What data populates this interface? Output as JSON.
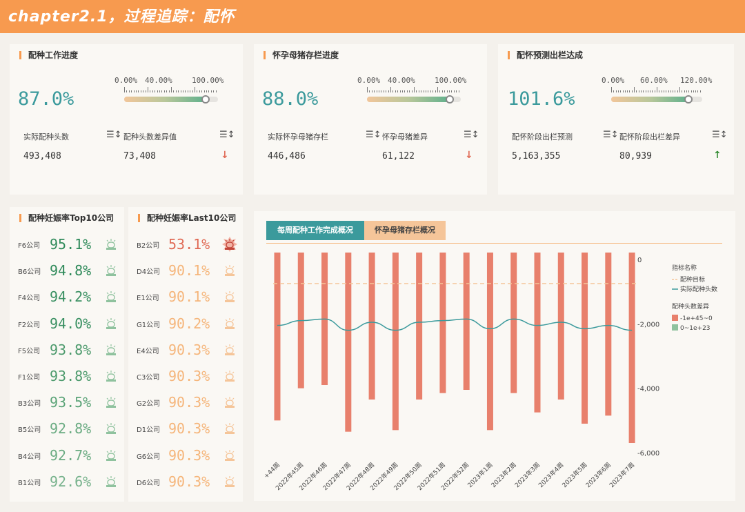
{
  "header": {
    "title": "chapter2.1，过程追踪：配怀"
  },
  "kpis": [
    {
      "title": "配种工作进度",
      "value": "87.0%",
      "ticks": [
        "0.00%",
        "40.00%",
        "100.00%"
      ],
      "progress": 0.87,
      "metric1_label": "实际配种头数",
      "metric1_value": "493,408",
      "metric2_label": "配种头数差异值",
      "metric2_value": "73,408",
      "trend": "down"
    },
    {
      "title": "怀孕母猪存栏进度",
      "value": "88.0%",
      "ticks": [
        "0.00%",
        "40.00%",
        "100.00%"
      ],
      "progress": 0.88,
      "metric1_label": "实际怀孕母猪存栏",
      "metric1_value": "446,486",
      "metric2_label": "怀孕母猪差异",
      "metric2_value": "61,122",
      "trend": "down"
    },
    {
      "title": "配怀预测出栏达成",
      "value": "101.6%",
      "ticks": [
        "0.00%",
        "60.00%",
        "120.00%"
      ],
      "progress": 0.847,
      "metric1_label": "配怀阶段出栏预测",
      "metric1_value": "5,163,355",
      "metric2_label": "配怀阶段出栏差异",
      "metric2_value": "80,939",
      "trend": "up"
    }
  ],
  "trend_icons": {
    "down": "↓",
    "up": "↑"
  },
  "colors": {
    "accent": "#f79a4f",
    "teal": "#3b9a9c",
    "green": "#2f8a5a",
    "red": "#e06a55",
    "orange_light": "#f5b57a",
    "bar": "#e8806c"
  },
  "top10": {
    "title": "配种妊娠率Top10公司",
    "items": [
      {
        "name": "F6公司",
        "value": "95.1%"
      },
      {
        "name": "B6公司",
        "value": "94.8%"
      },
      {
        "name": "F4公司",
        "value": "94.2%"
      },
      {
        "name": "F2公司",
        "value": "94.0%"
      },
      {
        "name": "F5公司",
        "value": "93.8%"
      },
      {
        "name": "F1公司",
        "value": "93.8%"
      },
      {
        "name": "B3公司",
        "value": "93.5%"
      },
      {
        "name": "B5公司",
        "value": "92.8%"
      },
      {
        "name": "B4公司",
        "value": "92.7%"
      },
      {
        "name": "B1公司",
        "value": "92.6%"
      }
    ]
  },
  "last10": {
    "title": "配种妊娠率Last10公司",
    "items": [
      {
        "name": "B2公司",
        "value": "53.1%"
      },
      {
        "name": "D4公司",
        "value": "90.1%"
      },
      {
        "name": "E1公司",
        "value": "90.1%"
      },
      {
        "name": "G1公司",
        "value": "90.2%"
      },
      {
        "name": "E4公司",
        "value": "90.3%"
      },
      {
        "name": "C3公司",
        "value": "90.3%"
      },
      {
        "name": "G2公司",
        "value": "90.3%"
      },
      {
        "name": "D1公司",
        "value": "90.3%"
      },
      {
        "name": "G6公司",
        "value": "90.3%"
      },
      {
        "name": "D6公司",
        "value": "90.3%"
      }
    ]
  },
  "tabs": [
    {
      "label": "每周配种工作完成概况",
      "active": true
    },
    {
      "label": "怀孕母猪存栏概况",
      "active": false
    }
  ],
  "chart_data": {
    "type": "bar",
    "categories": [
      "+44周",
      "2022年45周",
      "2022年46周",
      "2022年47周",
      "2022年48周",
      "2022年49周",
      "2022年50周",
      "2022年51周",
      "2022年52周",
      "2023年1周",
      "2023年2周",
      "2023年3周",
      "2023年4周",
      "2023年5周",
      "2023年6周",
      "2023年7周"
    ],
    "series": [
      {
        "name": "配种目标",
        "kind": "line",
        "style": "dashed",
        "values": [
          -750,
          -750,
          -750,
          -750,
          -750,
          -750,
          -750,
          -750,
          -750,
          -750,
          -750,
          -750,
          -750,
          -750,
          -750,
          -750
        ]
      },
      {
        "name": "实际配种头数",
        "kind": "line",
        "values": [
          -2050,
          -1900,
          -1850,
          -2200,
          -1950,
          -2200,
          -1950,
          -1900,
          -1850,
          -2150,
          -1850,
          -2050,
          -1950,
          -2150,
          -2050,
          -2200
        ]
      },
      {
        "name": "-1e+45~0",
        "kind": "bar",
        "values": [
          -5000,
          -4000,
          -3900,
          -5350,
          -4350,
          -5300,
          -4350,
          -4150,
          -4050,
          -5300,
          -4150,
          -4750,
          -4350,
          -5100,
          -4850,
          -5700
        ]
      }
    ],
    "legend": {
      "line_title": "指标名称",
      "line_items": [
        "配种目标",
        "实际配种头数"
      ],
      "bar_title": "配种头数差异",
      "bar_items": [
        "-1e+45~0",
        "0~1e+23"
      ]
    },
    "yticks": [
      "0",
      "-2,000",
      "-4,000",
      "-6,000"
    ],
    "ytick_values": [
      0,
      -2000,
      -4000,
      -6000
    ],
    "ylim": [
      -6000,
      0
    ],
    "legend_position": "right",
    "grid": false
  }
}
